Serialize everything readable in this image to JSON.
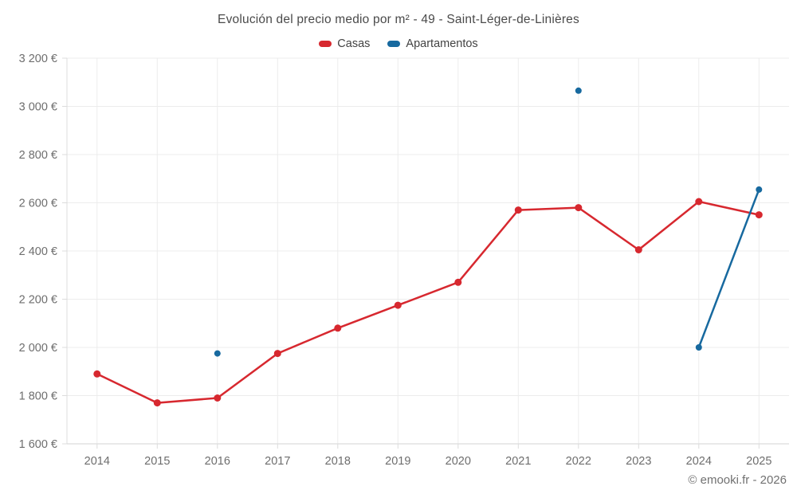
{
  "attribution": "© emooki.fr - 2026",
  "chart_data": {
    "type": "line",
    "title": "Evolución del precio medio por m² - 49 - Saint-Léger-de-Linières",
    "categories": [
      "2014",
      "2015",
      "2016",
      "2017",
      "2018",
      "2019",
      "2020",
      "2021",
      "2022",
      "2023",
      "2024",
      "2025"
    ],
    "series": [
      {
        "name": "Casas",
        "color": "#d7282f",
        "values": [
          1890,
          1770,
          1790,
          1975,
          2080,
          2175,
          2270,
          2570,
          2580,
          2405,
          2605,
          2550
        ]
      },
      {
        "name": "Apartamentos",
        "color": "#17699f",
        "values": [
          null,
          null,
          1975,
          null,
          null,
          null,
          null,
          null,
          3065,
          null,
          2000,
          2655
        ]
      }
    ],
    "ylabel": "",
    "xlabel": "",
    "ylim": [
      1600,
      3200
    ],
    "ytick_step": 200,
    "ytick_suffix": " €",
    "ytick_labels": [
      "1 600 €",
      "1 800 €",
      "2 000 €",
      "2 200 €",
      "2 400 €",
      "2 600 €",
      "2 800 €",
      "3 000 €",
      "3 200 €"
    ],
    "grid": true,
    "legend_position": "top"
  },
  "colors": {
    "casas": "#d7282f",
    "apartamentos": "#17699f",
    "gridline": "#ececec",
    "axis_line": "#dcdcdc",
    "tick_label": "#6e6e6e",
    "title_text": "#4a4a4a",
    "attribution_text": "#717171"
  }
}
